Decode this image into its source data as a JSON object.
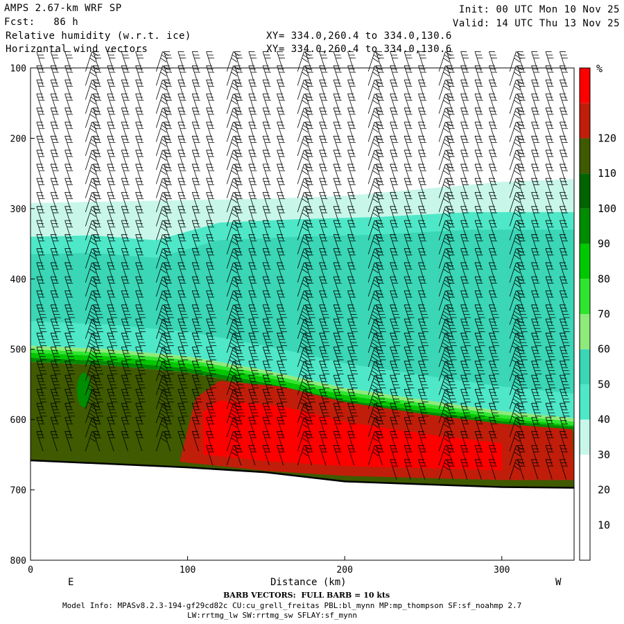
{
  "header": {
    "model": "AMPS 2.67-km WRF SP",
    "fcst": "Fcst:   86 h",
    "field1": "Relative humidity (w.r.t. ice)",
    "field2": "Horizontal wind vectors",
    "init": "Init: 00 UTC Mon 10 Nov 25",
    "valid": "Valid: 14 UTC Thu 13 Nov 25",
    "xy1": "XY= 334.0,260.4 to 334.0,130.6",
    "xy2": "XY= 334.0,260.4 to 334.0,130.6"
  },
  "footer": {
    "barb_note": "BARB VECTORS:  FULL BARB = 10 kts",
    "model_info": "Model Info: MPASv8.2.3-194-gf29cd82c CU:cu_grell_freitas PBL:bl_mynn MP:mp_thompson SF:sf_noahmp 2.7",
    "model_info2": "LW:rrtmg_lw SW:rrtmg_sw SFLAY:sf_mynn"
  },
  "chart_data": {
    "type": "heatmap",
    "title": "Relative humidity (w.r.t. ice)",
    "xlabel": "Distance (km)",
    "ylabel": "",
    "x_range": [
      0,
      346
    ],
    "y_range": [
      100,
      800
    ],
    "y_inverted": true,
    "x_ticks": [
      0,
      100,
      200,
      300
    ],
    "y_ticks": [
      100,
      200,
      300,
      400,
      500,
      600,
      700,
      800
    ],
    "x_end_labels": {
      "left": "E",
      "right": "W"
    },
    "colorbar": {
      "unit": "%",
      "levels": [
        10,
        20,
        30,
        40,
        50,
        60,
        70,
        80,
        90,
        100,
        110,
        120
      ],
      "colors": [
        "#ffffff",
        "#ffffff",
        "#ffffff",
        "#c8f7ea",
        "#4ee8c8",
        "#3ad6b6",
        "#8eea7a",
        "#2fe62f",
        "#00c800",
        "#008c00",
        "#006400",
        "#3f5a00",
        "#c01e0a",
        "#ff0000"
      ]
    },
    "layers": {
      "dry_top_ceiling": [
        {
          "x": 0,
          "p": 292
        },
        {
          "x": 50,
          "p": 290
        },
        {
          "x": 100,
          "p": 288
        },
        {
          "x": 150,
          "p": 286
        },
        {
          "x": 200,
          "p": 282
        },
        {
          "x": 250,
          "p": 272
        },
        {
          "x": 300,
          "p": 262
        },
        {
          "x": 346,
          "p": 258
        }
      ],
      "moist_40_top": [
        {
          "x": 0,
          "p": 340
        },
        {
          "x": 40,
          "p": 338
        },
        {
          "x": 80,
          "p": 345
        },
        {
          "x": 120,
          "p": 320
        },
        {
          "x": 170,
          "p": 315
        },
        {
          "x": 220,
          "p": 312
        },
        {
          "x": 280,
          "p": 305
        },
        {
          "x": 346,
          "p": 305
        }
      ],
      "green_top": [
        {
          "x": 0,
          "p": 495
        },
        {
          "x": 50,
          "p": 500
        },
        {
          "x": 100,
          "p": 510
        },
        {
          "x": 150,
          "p": 530
        },
        {
          "x": 200,
          "p": 555
        },
        {
          "x": 250,
          "p": 572
        },
        {
          "x": 300,
          "p": 588
        },
        {
          "x": 346,
          "p": 598
        }
      ],
      "dark_green_top": [
        {
          "x": 0,
          "p": 512
        },
        {
          "x": 50,
          "p": 517
        },
        {
          "x": 100,
          "p": 527
        },
        {
          "x": 150,
          "p": 548
        },
        {
          "x": 200,
          "p": 572
        },
        {
          "x": 250,
          "p": 588
        },
        {
          "x": 300,
          "p": 602
        },
        {
          "x": 346,
          "p": 610
        }
      ],
      "red_top": [
        {
          "x": 95,
          "p": 660
        },
        {
          "x": 105,
          "p": 570
        },
        {
          "x": 120,
          "p": 545
        },
        {
          "x": 160,
          "p": 553
        },
        {
          "x": 200,
          "p": 575
        },
        {
          "x": 250,
          "p": 592
        },
        {
          "x": 300,
          "p": 606
        },
        {
          "x": 346,
          "p": 614
        }
      ],
      "red_bottom": [
        {
          "x": 95,
          "p": 660
        },
        {
          "x": 150,
          "p": 673
        },
        {
          "x": 200,
          "p": 680
        },
        {
          "x": 250,
          "p": 683
        },
        {
          "x": 300,
          "p": 686
        },
        {
          "x": 346,
          "p": 686
        }
      ],
      "terrain": [
        {
          "x": 0,
          "p": 658
        },
        {
          "x": 50,
          "p": 663
        },
        {
          "x": 100,
          "p": 668
        },
        {
          "x": 150,
          "p": 675
        },
        {
          "x": 200,
          "p": 688
        },
        {
          "x": 250,
          "p": 692
        },
        {
          "x": 300,
          "p": 696
        },
        {
          "x": 346,
          "p": 697
        }
      ]
    },
    "barb_columns_km": [
      8,
      17,
      26,
      35,
      44,
      53,
      62,
      71,
      80,
      89,
      98,
      107,
      116,
      125,
      134,
      143,
      152,
      161,
      170,
      179,
      188,
      197,
      206,
      215,
      224,
      233,
      242,
      251,
      260,
      269,
      278,
      287,
      296,
      305,
      314,
      323,
      332,
      341
    ],
    "barb_spacing_hpa": 20
  }
}
